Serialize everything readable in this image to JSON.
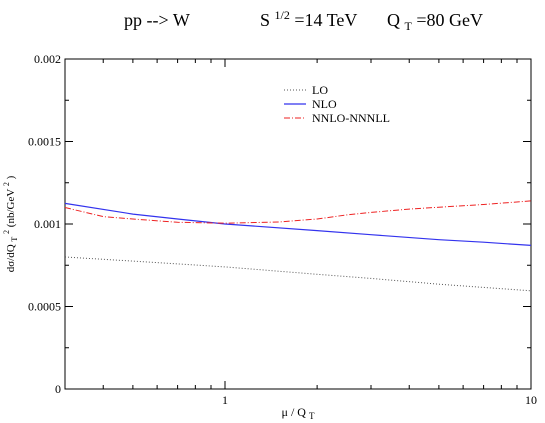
{
  "chart_data": {
    "type": "line",
    "title": {
      "process": "pp --> W",
      "energy_pre": "S",
      "energy_sup": "1/2",
      "energy_post": "=14 TeV",
      "qt_pre": "Q",
      "qt_sub": "T",
      "qt_post": "=80 GeV"
    },
    "xlabel": {
      "main": "μ / Q",
      "sub": "T"
    },
    "ylabel": {
      "part1": "dσ/dQ",
      "sub1": "T",
      "sup1": "2",
      "part2": " (nb/GeV",
      "sup2": "2",
      "part3": ")"
    },
    "xscale": "log",
    "xlim": [
      0.3,
      10
    ],
    "ylim": [
      0,
      0.002
    ],
    "x_ticks": [
      {
        "value": 1,
        "label": "1"
      },
      {
        "value": 10,
        "label": "10"
      }
    ],
    "y_ticks": [
      {
        "value": 0,
        "label": "0"
      },
      {
        "value": 0.0005,
        "label": "0.0005"
      },
      {
        "value": 0.001,
        "label": "0.001"
      },
      {
        "value": 0.0015,
        "label": "0.0015"
      },
      {
        "value": 0.002,
        "label": "0.002"
      }
    ],
    "grid": false,
    "legend_position": "top-right",
    "series": [
      {
        "name": "LO",
        "color": "#555555",
        "style": "dotted",
        "points": [
          [
            0.3,
            0.0008
          ],
          [
            0.5,
            0.000775
          ],
          [
            1,
            0.00074
          ],
          [
            2,
            0.000695
          ],
          [
            3,
            0.00067
          ],
          [
            5,
            0.000635
          ],
          [
            10,
            0.000595
          ]
        ]
      },
      {
        "name": "NLO",
        "color": "#3333ee",
        "style": "solid",
        "points": [
          [
            0.3,
            0.001125
          ],
          [
            0.5,
            0.00106
          ],
          [
            0.7,
            0.00103
          ],
          [
            1,
            0.001
          ],
          [
            2,
            0.00096
          ],
          [
            3,
            0.000935
          ],
          [
            5,
            0.000905
          ],
          [
            7,
            0.00089
          ],
          [
            10,
            0.00087
          ]
        ]
      },
      {
        "name": "NNLO-NNNLL",
        "color": "#ee2222",
        "style": "dashdot",
        "points": [
          [
            0.3,
            0.0011
          ],
          [
            0.4,
            0.001045
          ],
          [
            0.5,
            0.00103
          ],
          [
            0.7,
            0.00101
          ],
          [
            1,
            0.001005
          ],
          [
            1.5,
            0.001012
          ],
          [
            2,
            0.00103
          ],
          [
            2.5,
            0.001055
          ],
          [
            3,
            0.00107
          ],
          [
            4,
            0.00109
          ],
          [
            5,
            0.001102
          ],
          [
            7,
            0.001118
          ],
          [
            10,
            0.00114
          ]
        ]
      }
    ]
  }
}
